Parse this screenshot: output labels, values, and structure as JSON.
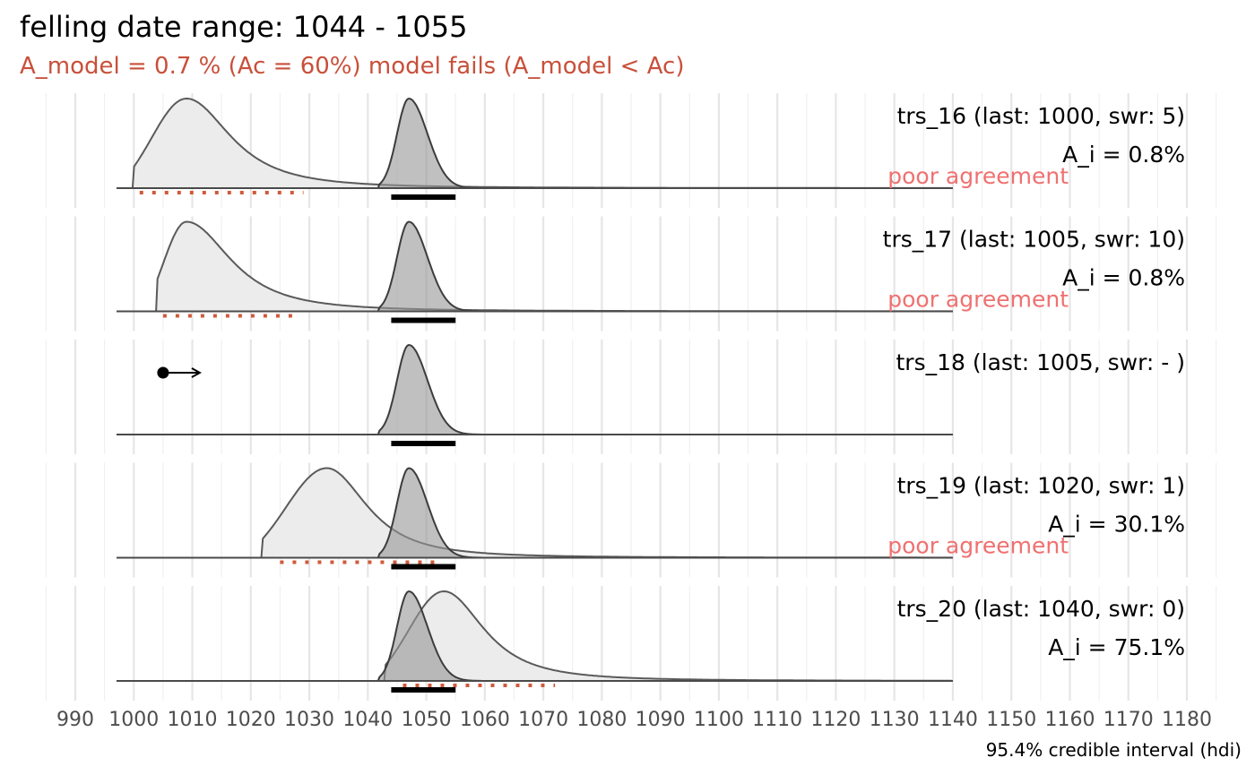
{
  "chart_data": {
    "type": "area",
    "title": "felling date range:  1044  -  1055",
    "subtitle": "A_model =  0.7 % (Ac = 60%) model fails (A_model < Ac)",
    "caption": "95.4% credible interval (hdi)",
    "xlim": [
      985,
      1185
    ],
    "x_ticks": [
      990,
      1000,
      1010,
      1020,
      1030,
      1040,
      1050,
      1060,
      1070,
      1080,
      1090,
      1100,
      1110,
      1120,
      1130,
      1140,
      1150,
      1160,
      1170,
      1180
    ],
    "x_tick_labels": [
      "990",
      "1000",
      "1010",
      "1020",
      "1030",
      "1040",
      "1050",
      "1060",
      "1070",
      "1080",
      "1090",
      "1100",
      "1110",
      "1120",
      "1130",
      "1140",
      "1150",
      "1160",
      "1170",
      "1180"
    ],
    "model": {
      "peak": 1047,
      "hdi": [
        1044,
        1055
      ],
      "support_start": 1042
    },
    "series": [
      {
        "label": "trs_16 (last: 1000, swr: 5)",
        "agreement_label": "A_i = 0.8%",
        "status_label": "poor agreement",
        "dist": {
          "start": 1000,
          "peak": 1009,
          "rise": 6,
          "fall": 11
        },
        "hdi": [
          1001,
          1029
        ]
      },
      {
        "label": "trs_17 (last: 1005, swr: 10)",
        "agreement_label": "A_i = 0.8%",
        "status_label": "poor agreement",
        "dist": {
          "start": 1004,
          "peak": 1009,
          "rise": 4,
          "fall": 11
        },
        "hdi": [
          1005,
          1028
        ]
      },
      {
        "label": "trs_18 (last: 1005, swr: - )",
        "agreement_label": "",
        "status_label": "",
        "terminus_post_quem": 1005,
        "hdi": null
      },
      {
        "label": "trs_19 (last: 1020, swr: 1)",
        "agreement_label": "A_i = 30.1%",
        "status_label": "poor agreement",
        "dist": {
          "start": 1022,
          "peak": 1033,
          "rise": 7,
          "fall": 10
        },
        "hdi": [
          1025,
          1052
        ]
      },
      {
        "label": "trs_20 (last: 1040, swr: 0)",
        "agreement_label": "A_i = 75.1%",
        "status_label": "",
        "dist": {
          "start": 1043,
          "peak": 1053,
          "rise": 6,
          "fall": 10
        },
        "hdi": [
          1046,
          1072
        ]
      }
    ]
  }
}
